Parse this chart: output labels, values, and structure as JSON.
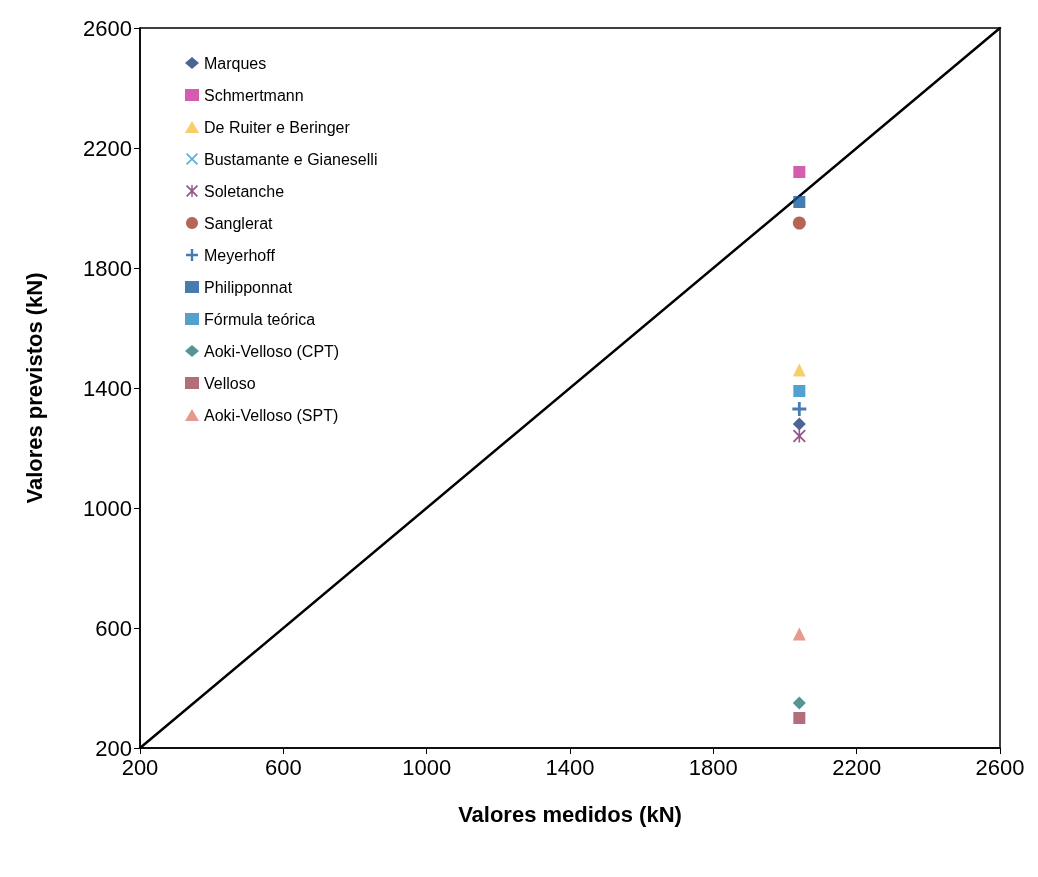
{
  "chart_data": {
    "type": "scatter",
    "xlabel": "Valores medidos (kN)",
    "ylabel": "Valores previstos (kN)",
    "xlim": [
      200,
      2600
    ],
    "xticks": [
      200,
      600,
      1000,
      1400,
      1800,
      2200,
      2600
    ],
    "ylim": [
      200,
      2600
    ],
    "yticks": [
      200,
      600,
      1000,
      1400,
      1800,
      2200,
      2600
    ],
    "grid": false,
    "legend": "top left",
    "series": [
      {
        "type": "line",
        "color": "#000000",
        "x": [
          200,
          2600
        ],
        "values": [
          200,
          2600
        ],
        "marker": "none",
        "line_style": "solid"
      },
      {
        "name": "Marques",
        "color": "#1f3f7a",
        "marker": "diamond",
        "x": [
          2040
        ],
        "values": [
          1280
        ]
      },
      {
        "name": "Schmertmann",
        "color": "#cc3399",
        "marker": "square",
        "x": [
          2040
        ],
        "values": [
          2120
        ]
      },
      {
        "name": "De Ruiter e Beringer",
        "color": "#f5c242",
        "marker": "triangle",
        "x": [
          2040
        ],
        "values": [
          1460
        ]
      },
      {
        "name": "Bustamante e Gianeselli",
        "color": "#2aa0d0",
        "marker": "x",
        "values": [
          null
        ]
      },
      {
        "name": "Soletanche",
        "color": "#7a2a6a",
        "marker": "star",
        "x": [
          2040
        ],
        "values": [
          1240
        ]
      },
      {
        "name": "Sanglerat",
        "color": "#a0402a",
        "marker": "circle",
        "x": [
          2040
        ],
        "values": [
          1950
        ]
      },
      {
        "name": "Meyerhoff",
        "color": "#1a5a9a",
        "marker": "cross",
        "x": [
          2040
        ],
        "values": [
          1330
        ]
      },
      {
        "name": "Philipponnat",
        "color": "#1a5a9a",
        "marker": "square",
        "x": [
          2040
        ],
        "values": [
          2020
        ]
      },
      {
        "name": "Fórmula teórica",
        "color": "#2a8ac0",
        "marker": "square",
        "x": [
          2040
        ],
        "values": [
          1390
        ]
      },
      {
        "name": "Aoki-Velloso (CPT)",
        "color": "#2a7a7a",
        "marker": "diamond",
        "x": [
          2040
        ],
        "values": [
          350
        ]
      },
      {
        "name": "Velloso",
        "color": "#a04a5a",
        "marker": "square",
        "x": [
          2040
        ],
        "values": [
          300
        ]
      },
      {
        "name": "Aoki-Velloso (SPT)",
        "color": "#e08070",
        "marker": "triangle",
        "x": [
          2040
        ],
        "values": [
          580
        ]
      }
    ]
  }
}
